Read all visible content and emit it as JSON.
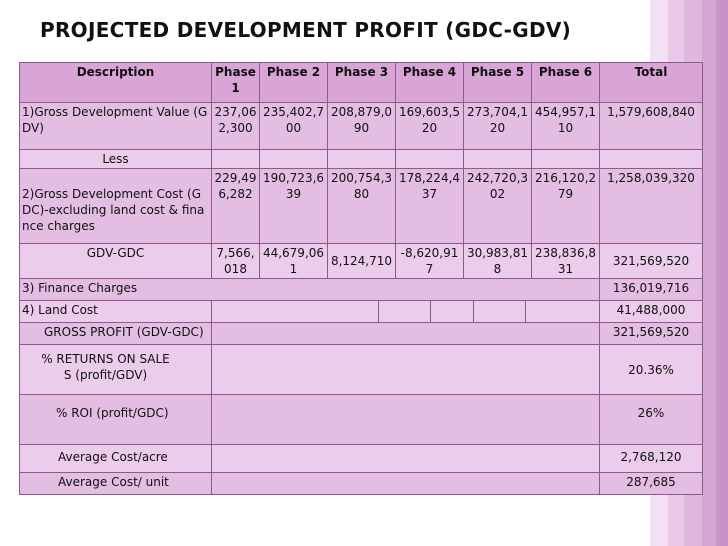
{
  "title": "PROJECTED DEVELOPMENT PROFIT (GDC-GDV)",
  "headers": [
    "Description",
    "Phase 1",
    "Phase 2",
    "Phase 3",
    "Phase 4",
    "Phase 5",
    "Phase 6",
    "Total"
  ],
  "gdv": {
    "label": "1)Gross Development Value (GDV)",
    "values": [
      "237,062,300",
      "235,402,700",
      "208,879,090",
      "169,603,520",
      "273,704,120",
      "454,957,110",
      "1,579,608,840"
    ]
  },
  "less": "Less",
  "gdc": {
    "label": "2)Gross Development Cost (GDC)-excluding land cost & finance charges",
    "values": [
      "229,496,282",
      "190,723,639",
      "200,754,380",
      "178,224,437",
      "242,720,302",
      "216,120,279",
      "1,258,039,320"
    ]
  },
  "gdv_gdc": {
    "label": "GDV-GDC",
    "values": [
      "7,566,018",
      "44,679,061",
      "8,124,710",
      "-8,620,917",
      "30,983,818",
      "238,836,831",
      "321,569,520"
    ]
  },
  "finance": {
    "label": "3) Finance Charges",
    "total": "136,019,716"
  },
  "land": {
    "label": "4) Land Cost",
    "total": "41,488,000"
  },
  "gross_profit": {
    "label": "GROSS PROFIT (GDV-GDC)",
    "total": "321,569,520"
  },
  "returns": {
    "label": "% RETURNS ON SALES (profit/GDV)",
    "total": "20.36%"
  },
  "roi": {
    "label": "% ROI (profit/GDC)",
    "total": "26%"
  },
  "avg_acre": {
    "label": "Average Cost/acre",
    "total": "2,768,120"
  },
  "avg_unit": {
    "label": "Average Cost/ unit",
    "total": "287,685"
  }
}
